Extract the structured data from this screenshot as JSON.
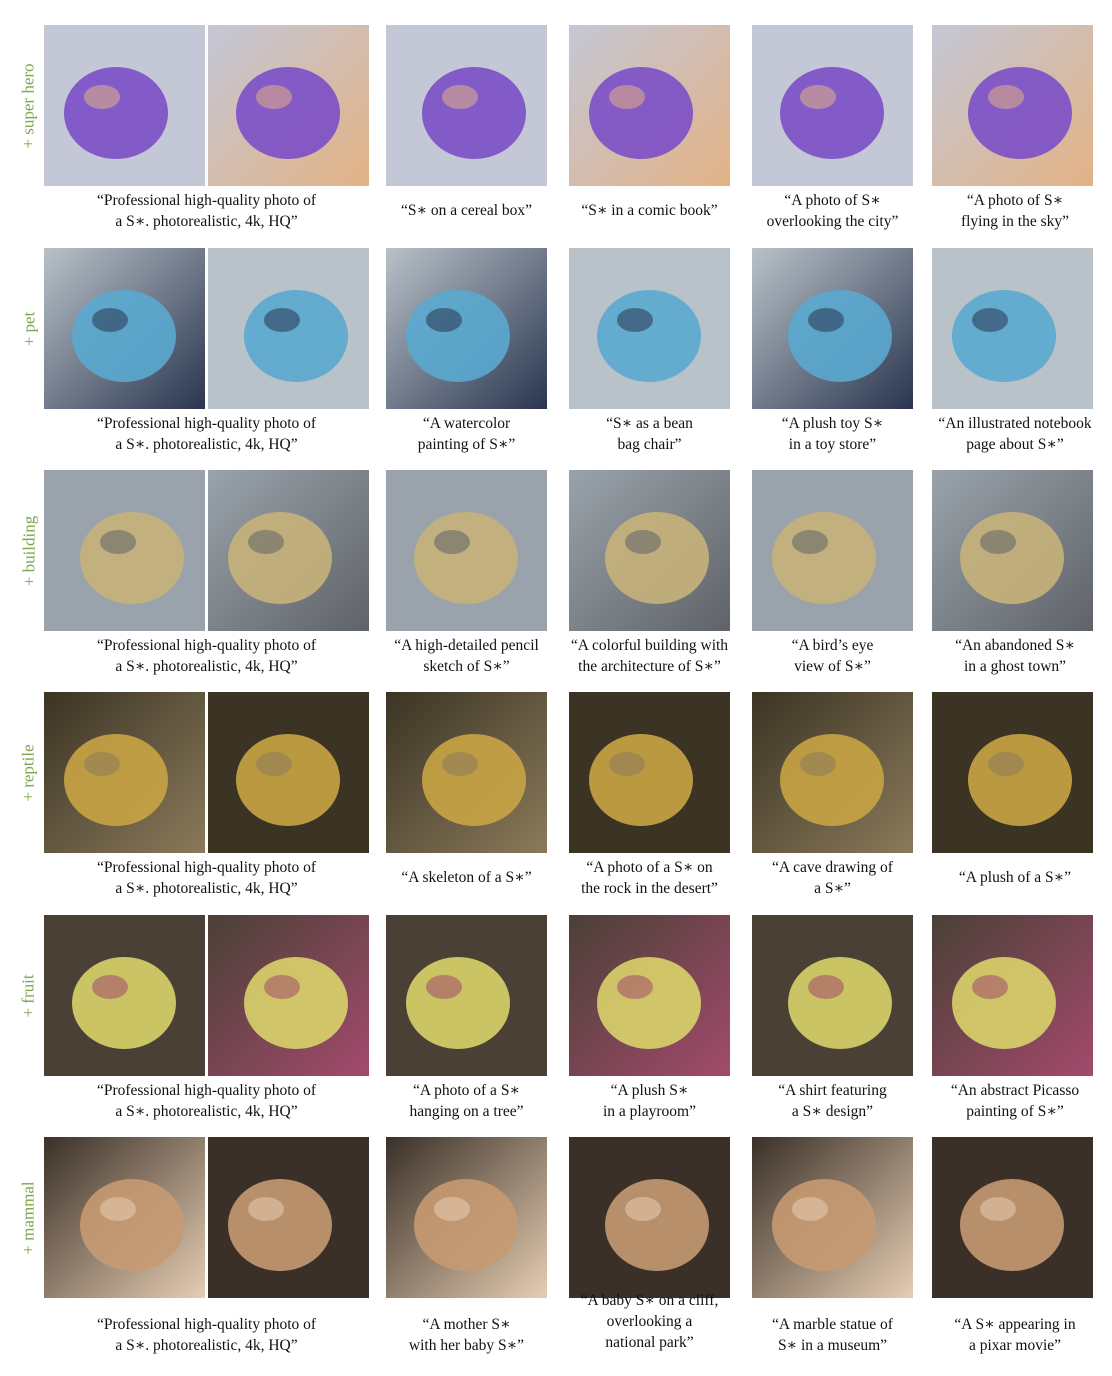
{
  "rows": [
    {
      "label": "+ super hero",
      "palette": [
        "#c4c7d6",
        "#7b4fc8",
        "#e3b285"
      ],
      "captions": [
        [
          "“Professional high-quality photo of",
          "a S∗. photorealistic, 4k, HQ”"
        ],
        [
          "“S∗ on a cereal box”"
        ],
        [
          "“S∗ in a comic book”"
        ],
        [
          "“A photo of S∗",
          "overlooking the city”"
        ],
        [
          "“A photo of S∗",
          "flying in the sky”"
        ]
      ]
    },
    {
      "label": "+ pet",
      "palette": [
        "#b9c2c8",
        "#5aa9cf",
        "#2a3550"
      ],
      "captions": [
        [
          "“Professional high-quality photo of",
          "a S∗. photorealistic, 4k, HQ”"
        ],
        [
          "“A watercolor",
          "painting of S∗”"
        ],
        [
          "“S∗ as a bean",
          "bag chair”"
        ],
        [
          "“A plush toy S∗",
          "in a toy store”"
        ],
        [
          "“An illustrated notebook",
          "page about S∗”"
        ]
      ]
    },
    {
      "label": "+ building",
      "palette": [
        "#9aa3ab",
        "#c7b27a",
        "#5f6368"
      ],
      "captions": [
        [
          "“Professional high-quality photo of",
          "a S∗. photorealistic, 4k, HQ”"
        ],
        [
          "“A high-detailed pencil",
          "sketch of S∗”"
        ],
        [
          "“A colorful building with",
          "the architecture of S∗”"
        ],
        [
          "“A bird’s eye",
          "view of S∗”"
        ],
        [
          "“An abandoned S∗",
          "in a ghost town”"
        ]
      ]
    },
    {
      "label": "+ reptile",
      "palette": [
        "#3b3424",
        "#c9a445",
        "#8a7a5a"
      ],
      "captions": [
        [
          "“Professional high-quality photo of",
          "a S∗. photorealistic, 4k, HQ”"
        ],
        [
          "“A skeleton of a S∗”"
        ],
        [
          "“A photo of a S∗ on",
          "the rock in the desert”"
        ],
        [
          "“A cave drawing of",
          "a S∗”"
        ],
        [
          "“A plush of a S∗”"
        ]
      ]
    },
    {
      "label": "+ fruit",
      "palette": [
        "#4a4036",
        "#d9d36a",
        "#a34a6c"
      ],
      "captions": [
        [
          "“Professional high-quality photo of",
          "a S∗. photorealistic, 4k, HQ”"
        ],
        [
          "“A photo of a S∗",
          "hanging on a tree”"
        ],
        [
          "“A plush S∗",
          "in a playroom”"
        ],
        [
          "“A shirt featuring",
          "a S∗ design”"
        ],
        [
          "“An abstract Picasso",
          "painting of S∗”"
        ]
      ]
    },
    {
      "label": "+ mammal",
      "palette": [
        "#3a3028",
        "#c69a72",
        "#e6cdb2"
      ],
      "captions": [
        [
          "“Professional high-quality photo of",
          "a S∗. photorealistic, 4k, HQ”"
        ],
        [
          "“A mother S∗",
          "with her baby S∗”"
        ],
        [
          "“A baby S∗ on a cliff,",
          "overlooking a",
          "national park”"
        ],
        [
          "“A marble statue of",
          "S∗ in a museum”"
        ],
        [
          "“A S∗ appearing in",
          "a pixar movie”"
        ]
      ]
    }
  ]
}
